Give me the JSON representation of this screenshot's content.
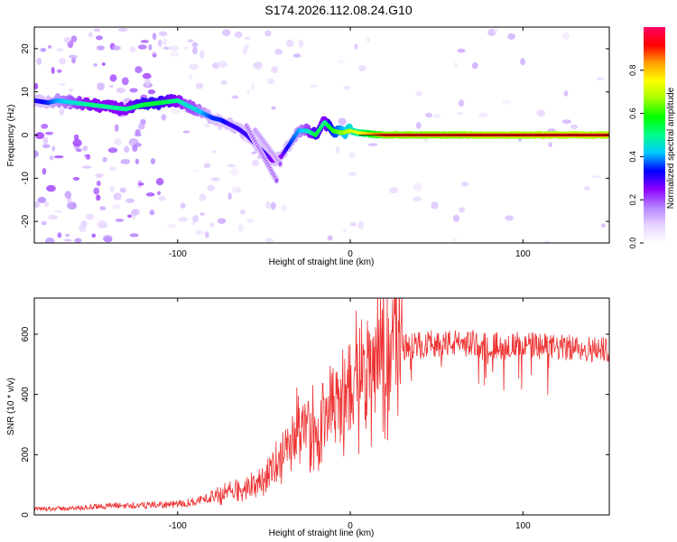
{
  "title": "S174.2026.112.08.24.G10",
  "chart_data": [
    {
      "type": "heatmap",
      "xlabel": "Height of straight line (km)",
      "ylabel": "Frequency (Hz)",
      "xlim": [
        -183,
        150
      ],
      "ylim": [
        -25,
        25
      ],
      "x_ticks": [
        -100,
        0,
        100
      ],
      "y_ticks": [
        -20,
        -10,
        0,
        10,
        20
      ],
      "colorbar": {
        "label": "Normalized spectral amplitude",
        "range": [
          0.0,
          1.0
        ],
        "ticks": [
          0.0,
          0.2,
          0.4,
          0.6,
          0.8
        ],
        "colors": [
          "#ffffff",
          "#e6d2ff",
          "#b482ff",
          "#8c00ff",
          "#0000ff",
          "#00c8ff",
          "#00ff8c",
          "#00ff00",
          "#a0ff00",
          "#ffff00",
          "#ffa000",
          "#ff0000",
          "#ff0064"
        ]
      },
      "ridge": {
        "x": [
          -183,
          -175,
          -170,
          -160,
          -150,
          -140,
          -130,
          -120,
          -110,
          -100,
          -95,
          -90,
          -85,
          -80,
          -75,
          -70,
          -65,
          -60,
          -55,
          -50,
          -45,
          -40,
          -35,
          -30,
          -25,
          -20,
          -15,
          -10,
          -5,
          0,
          5,
          10,
          20,
          40,
          60,
          80,
          100,
          120,
          150
        ],
        "freq": [
          8,
          7.5,
          8,
          7.5,
          7,
          6.5,
          6,
          7,
          7.5,
          8,
          7,
          6,
          5,
          4,
          3.5,
          2.5,
          1.5,
          0,
          -2,
          -4,
          -6,
          -5,
          -2,
          1,
          1,
          0,
          3,
          1,
          0.5,
          1,
          0.5,
          0.3,
          0,
          0,
          0,
          0,
          0,
          0,
          0
        ],
        "amplitude": [
          0.3,
          0.35,
          0.4,
          0.45,
          0.5,
          0.5,
          0.5,
          0.55,
          0.55,
          0.5,
          0.45,
          0.45,
          0.4,
          0.35,
          0.35,
          0.3,
          0.3,
          0.3,
          0.3,
          0.3,
          0.25,
          0.25,
          0.35,
          0.4,
          0.45,
          0.55,
          0.5,
          0.6,
          0.65,
          0.7,
          0.75,
          0.8,
          0.9,
          0.9,
          0.9,
          0.92,
          0.92,
          0.93,
          0.93
        ]
      }
    },
    {
      "type": "line",
      "xlabel": "Height of straight line (km)",
      "ylabel": "SNR (10 * v/v)",
      "xlim": [
        -183,
        150
      ],
      "ylim": [
        0,
        720
      ],
      "x_ticks": [
        -100,
        0,
        100
      ],
      "y_ticks": [
        0,
        200,
        400,
        600
      ],
      "color": "#ee3333",
      "envelope": {
        "x": [
          -183,
          -160,
          -140,
          -120,
          -100,
          -90,
          -80,
          -70,
          -60,
          -50,
          -45,
          -40,
          -35,
          -30,
          -25,
          -20,
          -15,
          -10,
          -5,
          0,
          5,
          10,
          15,
          20,
          25,
          30,
          40,
          50,
          60,
          70,
          80,
          90,
          100,
          110,
          120,
          130,
          140,
          150
        ],
        "snr": [
          20,
          22,
          30,
          32,
          35,
          45,
          60,
          75,
          95,
          120,
          160,
          190,
          230,
          260,
          280,
          300,
          320,
          350,
          390,
          420,
          460,
          490,
          510,
          530,
          545,
          555,
          565,
          570,
          570,
          570,
          565,
          560,
          565,
          560,
          555,
          555,
          550,
          550
        ]
      }
    }
  ]
}
